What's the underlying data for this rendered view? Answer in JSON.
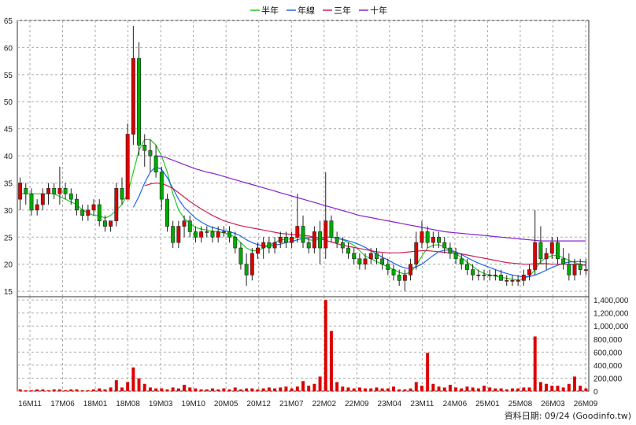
{
  "chart_data": {
    "type": "candlestick",
    "legend": [
      {
        "name": "半年",
        "color": "#22cc22"
      },
      {
        "name": "年線",
        "color": "#2266ee"
      },
      {
        "name": "三年",
        "color": "#cc2255"
      },
      {
        "name": "十年",
        "color": "#8822cc"
      }
    ],
    "price_axis": {
      "ylim": [
        14,
        65
      ],
      "ticks": [
        "15",
        "20",
        "25",
        "30",
        "35",
        "40",
        "45",
        "50",
        "55",
        "60",
        "65"
      ]
    },
    "volume_axis": {
      "ylim": [
        0,
        1450000
      ],
      "ticks": [
        "0",
        "200,000",
        "400,000",
        "600,000",
        "800,000",
        "1,000,000",
        "1,200,000",
        "1,400,000"
      ]
    },
    "x_labels": [
      "16M11",
      "17M06",
      "18M01",
      "18M08",
      "19M03",
      "19M10",
      "20M05",
      "20M12",
      "21M07",
      "22M02",
      "22M09",
      "23M04",
      "23M11",
      "24M06",
      "25M01",
      "25M08",
      "26M03",
      "26M09"
    ],
    "colors": {
      "up": "#dd0000",
      "down": "#00aa00",
      "volume": "#dd0000"
    },
    "candles": [
      [
        0,
        32,
        36,
        30,
        35
      ],
      [
        1,
        34,
        35,
        31,
        33
      ],
      [
        2,
        33,
        34,
        29,
        30
      ],
      [
        3,
        30,
        32,
        29,
        31
      ],
      [
        4,
        31,
        34,
        30,
        33
      ],
      [
        5,
        33,
        35,
        31,
        34
      ],
      [
        6,
        34,
        35,
        32,
        33
      ],
      [
        7,
        33,
        38,
        31,
        34
      ],
      [
        8,
        34,
        35,
        32,
        33
      ],
      [
        9,
        33,
        34,
        31,
        32
      ],
      [
        10,
        32,
        33,
        29,
        30
      ],
      [
        11,
        30,
        31,
        28,
        29
      ],
      [
        12,
        29,
        31,
        28,
        30
      ],
      [
        13,
        30,
        32,
        29,
        31
      ],
      [
        14,
        31,
        32,
        27,
        28
      ],
      [
        15,
        28,
        29,
        26,
        27
      ],
      [
        16,
        27,
        28,
        26,
        28
      ],
      [
        17,
        28,
        35,
        27,
        34
      ],
      [
        18,
        34,
        36,
        31,
        32
      ],
      [
        19,
        32,
        46,
        32,
        44
      ],
      [
        20,
        44,
        64,
        42,
        58
      ],
      [
        21,
        58,
        61,
        40,
        42
      ],
      [
        22,
        42,
        44,
        38,
        41
      ],
      [
        23,
        41,
        43,
        37,
        40
      ],
      [
        24,
        40,
        42,
        36,
        37
      ],
      [
        25,
        37,
        38,
        30,
        32
      ],
      [
        26,
        32,
        33,
        26,
        27
      ],
      [
        27,
        27,
        28,
        23,
        24
      ],
      [
        28,
        24,
        28,
        23,
        27
      ],
      [
        29,
        27,
        29,
        25,
        28
      ],
      [
        30,
        28,
        29,
        25,
        26
      ],
      [
        31,
        26,
        27,
        24,
        25
      ],
      [
        32,
        25,
        27,
        24,
        26
      ],
      [
        33,
        26,
        27,
        25,
        26
      ],
      [
        34,
        26,
        27,
        24,
        25
      ],
      [
        35,
        25,
        27,
        24,
        26
      ],
      [
        36,
        26,
        27,
        25,
        26
      ],
      [
        37,
        26,
        27,
        24,
        25
      ],
      [
        38,
        25,
        26,
        22,
        23
      ],
      [
        39,
        23,
        24,
        19,
        20
      ],
      [
        40,
        20,
        22,
        16,
        18
      ],
      [
        41,
        18,
        23,
        17,
        22
      ],
      [
        42,
        22,
        24,
        21,
        23
      ],
      [
        43,
        23,
        25,
        21,
        24
      ],
      [
        44,
        24,
        25,
        22,
        23
      ],
      [
        45,
        23,
        25,
        22,
        24
      ],
      [
        46,
        24,
        26,
        23,
        25
      ],
      [
        47,
        25,
        26,
        23,
        24
      ],
      [
        48,
        24,
        26,
        23,
        25
      ],
      [
        49,
        25,
        33,
        24,
        27
      ],
      [
        50,
        27,
        29,
        23,
        24
      ],
      [
        51,
        24,
        25,
        22,
        23
      ],
      [
        52,
        23,
        27,
        22,
        26
      ],
      [
        53,
        26,
        28,
        20,
        23
      ],
      [
        54,
        23,
        37,
        21,
        28
      ],
      [
        55,
        28,
        29,
        24,
        25
      ],
      [
        56,
        25,
        26,
        23,
        24
      ],
      [
        57,
        24,
        25,
        22,
        23
      ],
      [
        58,
        23,
        24,
        21,
        22
      ],
      [
        59,
        22,
        23,
        20,
        21
      ],
      [
        60,
        21,
        22,
        19,
        20
      ],
      [
        61,
        20,
        22,
        19,
        21
      ],
      [
        62,
        21,
        23,
        20,
        22
      ],
      [
        63,
        22,
        23,
        20,
        21
      ],
      [
        64,
        21,
        22,
        19,
        20
      ],
      [
        65,
        20,
        21,
        18,
        19
      ],
      [
        66,
        19,
        20,
        17,
        18
      ],
      [
        67,
        18,
        19,
        16,
        17
      ],
      [
        68,
        17,
        19,
        15,
        18
      ],
      [
        69,
        18,
        21,
        17,
        20
      ],
      [
        70,
        20,
        26,
        19,
        24
      ],
      [
        71,
        24,
        28,
        23,
        26
      ],
      [
        72,
        26,
        27,
        23,
        24
      ],
      [
        73,
        24,
        26,
        23,
        25
      ],
      [
        74,
        25,
        26,
        23,
        24
      ],
      [
        75,
        24,
        25,
        22,
        23
      ],
      [
        76,
        23,
        24,
        21,
        22
      ],
      [
        77,
        22,
        23,
        20,
        21
      ],
      [
        78,
        21,
        22,
        19,
        20
      ],
      [
        79,
        20,
        21,
        18,
        19
      ],
      [
        80,
        19,
        20,
        17,
        18
      ],
      [
        81,
        18,
        19,
        17,
        18
      ],
      [
        82,
        18,
        19,
        17,
        18
      ],
      [
        83,
        18,
        19,
        17,
        18
      ],
      [
        84,
        18,
        19,
        17,
        18
      ],
      [
        85,
        18,
        19,
        17,
        17
      ],
      [
        86,
        17,
        18,
        16,
        17
      ],
      [
        87,
        17,
        18,
        16,
        17
      ],
      [
        88,
        17,
        18,
        16,
        17
      ],
      [
        89,
        17,
        19,
        16,
        18
      ],
      [
        90,
        18,
        20,
        17,
        19
      ],
      [
        91,
        19,
        30,
        18,
        24
      ],
      [
        92,
        24,
        27,
        20,
        21
      ],
      [
        93,
        21,
        23,
        19,
        22
      ],
      [
        94,
        22,
        25,
        21,
        24
      ],
      [
        95,
        24,
        25,
        20,
        21
      ],
      [
        96,
        21,
        23,
        19,
        20
      ],
      [
        97,
        20,
        22,
        17,
        18
      ],
      [
        98,
        18,
        21,
        17,
        20
      ],
      [
        99,
        20,
        21,
        18,
        19
      ],
      [
        100,
        19,
        21,
        18,
        19
      ]
    ],
    "volumes": [
      2,
      1,
      1,
      2,
      2,
      1,
      2,
      2,
      1,
      2,
      2,
      1,
      1,
      2,
      3,
      2,
      4,
      12,
      4,
      10,
      26,
      14,
      8,
      4,
      3,
      3,
      2,
      4,
      3,
      7,
      4,
      3,
      2,
      2,
      3,
      2,
      3,
      2,
      4,
      2,
      3,
      3,
      2,
      3,
      4,
      3,
      4,
      5,
      3,
      5,
      11,
      6,
      8,
      16,
      100,
      66,
      10,
      5,
      4,
      3,
      4,
      3,
      3,
      4,
      3,
      3,
      5,
      2,
      2,
      3,
      10,
      6,
      42,
      8,
      5,
      4,
      7,
      4,
      3,
      5,
      4,
      3,
      6,
      4,
      3,
      3,
      2,
      3,
      3,
      4,
      4,
      60,
      10,
      8,
      6,
      6,
      4,
      8,
      16,
      6,
      3
    ],
    "ma": {
      "half_year": [
        33,
        33,
        33,
        33,
        33,
        33,
        33,
        32.5,
        32,
        31.5,
        31,
        30,
        29.5,
        29,
        29,
        28.5,
        29,
        30,
        31,
        33,
        37,
        41,
        43,
        43,
        42,
        40,
        37,
        33,
        30,
        28.5,
        27.5,
        26.8,
        26.5,
        26.3,
        26.1,
        26,
        25.8,
        25.5,
        25,
        24,
        23,
        22.5,
        22.5,
        23,
        23.5,
        24,
        24.5,
        24.6,
        24.7,
        25,
        25,
        24.5,
        24.4,
        24.6,
        25,
        25,
        24.8,
        24.5,
        24,
        23.5,
        22.5,
        21.5,
        21,
        20.5,
        20,
        19.5,
        19,
        18.5,
        18.2,
        18.5,
        19.8,
        21.5,
        23,
        23.5,
        23.6,
        23.2,
        22.6,
        22,
        21.2,
        20.4,
        19.6,
        18.8,
        18.3,
        18,
        17.8,
        17.6,
        17.4,
        17.2,
        17.1,
        17.3,
        17.8,
        19,
        20.5,
        21.2,
        21.6,
        21.6,
        21.2,
        20.7,
        20.3,
        20,
        19.8
      ],
      "year": [
        null,
        null,
        null,
        null,
        null,
        null,
        null,
        null,
        null,
        null,
        null,
        null,
        null,
        null,
        null,
        null,
        null,
        null,
        null,
        null,
        30.5,
        32.5,
        35,
        37,
        38,
        37.5,
        36,
        34,
        32,
        30.5,
        29.5,
        28.5,
        27.8,
        27.2,
        26.8,
        26.5,
        26.2,
        26,
        25.7,
        25.2,
        24.5,
        24,
        23.6,
        23.4,
        23.4,
        23.5,
        23.7,
        24,
        24.2,
        24.5,
        24.8,
        24.9,
        24.9,
        24.9,
        25,
        25,
        24.8,
        24.6,
        24.3,
        24,
        23.6,
        23.1,
        22.5,
        21.9,
        21.3,
        20.8,
        20.2,
        19.7,
        19.3,
        19.2,
        19.5,
        20,
        20.8,
        21.6,
        22.3,
        22.6,
        22.6,
        22.3,
        21.8,
        21.2,
        20.7,
        20.2,
        19.8,
        19.4,
        19,
        18.6,
        18.3,
        18,
        17.8,
        17.7,
        17.7,
        18,
        18.4,
        18.9,
        19.4,
        19.8,
        20.2,
        20.4,
        20.5,
        20.5,
        20.4
      ],
      "three_year": [
        null,
        null,
        null,
        null,
        null,
        null,
        null,
        null,
        null,
        null,
        null,
        null,
        null,
        null,
        null,
        null,
        null,
        null,
        null,
        null,
        null,
        null,
        34.5,
        34.8,
        35,
        34.9,
        34.5,
        34,
        33.2,
        32.4,
        31.6,
        30.9,
        30.2,
        29.6,
        29,
        28.5,
        28,
        27.7,
        27.4,
        27.1,
        26.9,
        26.7,
        26.5,
        26.3,
        26.1,
        25.9,
        25.7,
        25.6,
        25.5,
        25.4,
        25.3,
        25.2,
        25,
        24.7,
        24.4,
        24.1,
        23.8,
        23.5,
        23.3,
        23.1,
        22.9,
        22.7,
        22.5,
        22.3,
        22.2,
        22.1,
        22.1,
        22.1,
        22.2,
        22.3,
        22.4,
        22.5,
        22.5,
        22.4,
        22.3,
        22.2,
        22.1,
        22,
        21.9,
        21.7,
        21.5,
        21.3,
        21.1,
        20.9,
        20.7,
        20.5,
        20.3,
        20.2,
        20.1,
        20,
        20,
        20.1,
        20.1,
        20.1,
        20,
        20,
        20,
        20,
        19.9,
        19.9,
        19.8
      ],
      "ten_year": [
        null,
        null,
        null,
        null,
        null,
        null,
        null,
        null,
        null,
        null,
        null,
        null,
        null,
        null,
        null,
        null,
        null,
        null,
        null,
        null,
        null,
        null,
        null,
        null,
        40,
        39.9,
        39.6,
        39.2,
        38.8,
        38.4,
        38,
        37.6,
        37.3,
        37,
        36.8,
        36.5,
        36.2,
        35.9,
        35.6,
        35.3,
        35,
        34.7,
        34.4,
        34.1,
        33.8,
        33.5,
        33.2,
        32.9,
        32.6,
        32.3,
        32,
        31.7,
        31.4,
        31.1,
        30.8,
        30.5,
        30.2,
        29.9,
        29.6,
        29.3,
        29,
        28.8,
        28.6,
        28.4,
        28.2,
        28,
        27.8,
        27.6,
        27.4,
        27.2,
        27,
        26.8,
        26.6,
        26.4,
        26.2,
        26,
        25.9,
        25.8,
        25.7,
        25.6,
        25.5,
        25.4,
        25.3,
        25.2,
        25.1,
        25,
        24.9,
        24.8,
        24.7,
        24.6,
        24.5,
        24.4,
        24.3,
        24.3,
        24.3,
        24.3,
        24.3,
        24.3,
        24.3,
        24.3,
        24.3
      ]
    }
  },
  "footer": {
    "text": "資料日期: 09/24  (Goodinfo.tw)"
  }
}
